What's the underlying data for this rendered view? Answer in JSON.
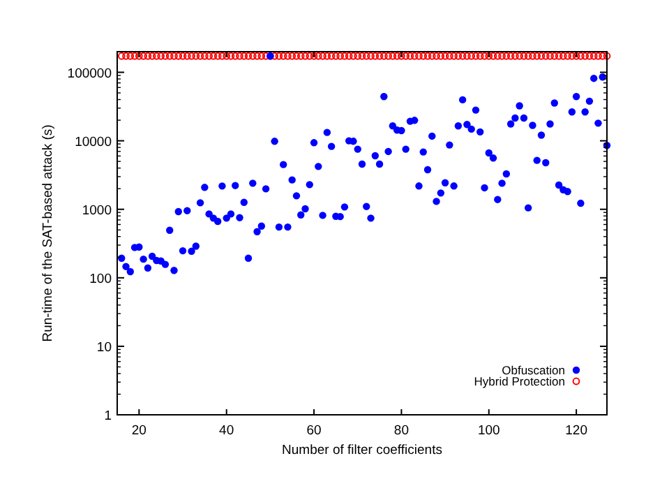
{
  "chart_data": {
    "type": "scatter",
    "xlabel": "Number of filter coefficients",
    "ylabel": "Run-time of the SAT-based attack (s)",
    "x": [
      16,
      17,
      18,
      19,
      20,
      21,
      22,
      23,
      24,
      25,
      26,
      27,
      28,
      29,
      30,
      31,
      32,
      33,
      34,
      35,
      36,
      37,
      38,
      39,
      40,
      41,
      42,
      43,
      44,
      45,
      46,
      47,
      48,
      49,
      50,
      51,
      52,
      53,
      54,
      55,
      56,
      57,
      58,
      59,
      60,
      61,
      62,
      63,
      64,
      65,
      66,
      67,
      68,
      69,
      70,
      71,
      72,
      73,
      74,
      75,
      76,
      77,
      78,
      79,
      80,
      81,
      82,
      83,
      84,
      85,
      86,
      87,
      88,
      89,
      90,
      91,
      92,
      93,
      94,
      95,
      96,
      97,
      98,
      99,
      100,
      101,
      102,
      103,
      104,
      105,
      106,
      107,
      108,
      109,
      110,
      111,
      112,
      113,
      114,
      115,
      116,
      117,
      118,
      119,
      120,
      121,
      122,
      123,
      124,
      125,
      126,
      127
    ],
    "series": [
      {
        "name": "Obfuscation",
        "color": "#0000ff",
        "marker": "circle",
        "values": [
          193,
          146,
          123,
          277,
          281,
          187,
          139,
          206,
          179,
          176,
          157,
          494,
          128,
          925,
          248,
          955,
          244,
          290,
          1245,
          2090,
          855,
          743,
          666,
          2188,
          743,
          855,
          2223,
          755,
          1265,
          193,
          2405,
          471,
          569,
          1991,
          172800,
          9840,
          551,
          4500,
          551,
          2683,
          1575,
          829,
          1016,
          2294,
          9390,
          4225,
          816,
          13250,
          8280,
          791,
          783,
          1082,
          10000,
          9840,
          7550,
          4570,
          1099,
          743,
          6060,
          4570,
          44300,
          6980,
          16500,
          14330,
          14100,
          7550,
          19300,
          19900,
          2190,
          6870,
          3790,
          11700,
          1305,
          1730,
          2440,
          8690,
          2190,
          16500,
          39700,
          17300,
          14800,
          28100,
          13500,
          2060,
          6650,
          5600,
          1390,
          2400,
          3290,
          17600,
          21500,
          32400,
          21500,
          1050,
          16800,
          5180,
          12100,
          4790,
          17600,
          35600,
          2260,
          1930,
          1820,
          26400,
          44300,
          1225,
          26400,
          37900,
          81600,
          18100,
          85500,
          8550
        ]
      },
      {
        "name": "Hybrid Protection",
        "color": "#ff0000",
        "marker": "open_circle",
        "values": [
          172800,
          172800,
          172800,
          172800,
          172800,
          172800,
          172800,
          172800,
          172800,
          172800,
          172800,
          172800,
          172800,
          172800,
          172800,
          172800,
          172800,
          172800,
          172800,
          172800,
          172800,
          172800,
          172800,
          172800,
          172800,
          172800,
          172800,
          172800,
          172800,
          172800,
          172800,
          172800,
          172800,
          172800,
          172800,
          172800,
          172800,
          172800,
          172800,
          172800,
          172800,
          172800,
          172800,
          172800,
          172800,
          172800,
          172800,
          172800,
          172800,
          172800,
          172800,
          172800,
          172800,
          172800,
          172800,
          172800,
          172800,
          172800,
          172800,
          172800,
          172800,
          172800,
          172800,
          172800,
          172800,
          172800,
          172800,
          172800,
          172800,
          172800,
          172800,
          172800,
          172800,
          172800,
          172800,
          172800,
          172800,
          172800,
          172800,
          172800,
          172800,
          172800,
          172800,
          172800,
          172800,
          172800,
          172800,
          172800,
          172800,
          172800,
          172800,
          172800,
          172800,
          172800,
          172800,
          172800,
          172800,
          172800,
          172800,
          172800,
          172800,
          172800,
          172800,
          172800,
          172800,
          172800,
          172800,
          172800,
          172800,
          172800,
          172800,
          172800
        ]
      }
    ],
    "log": "y",
    "xlim": [
      15,
      127
    ],
    "ylim": [
      1,
      200000
    ],
    "xticks": [
      20,
      40,
      60,
      80,
      100,
      120
    ],
    "yticks": [
      1,
      10,
      100,
      1000,
      10000,
      100000
    ],
    "grid": false,
    "legend": "bottom right"
  }
}
